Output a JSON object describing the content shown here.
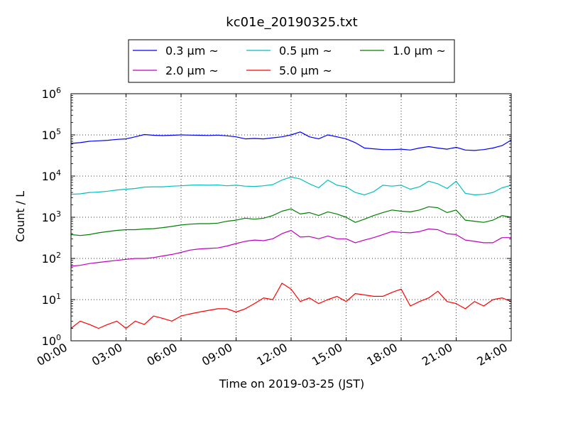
{
  "chart_data": {
    "type": "line",
    "title": "kc01e_20190325.txt",
    "xlabel": "Time on 2019-03-25 (JST)",
    "ylabel": "Count / L",
    "y_scale": "log",
    "ylim": [
      1,
      1000000
    ],
    "xlim": [
      "2019-03-25 00:00",
      "2019-03-26 00:00"
    ],
    "grid": true,
    "legend_position": "top-center, above plot",
    "x_ticks": [
      "00:00",
      "03:00",
      "06:00",
      "09:00",
      "12:00",
      "15:00",
      "18:00",
      "21:00",
      "24:00"
    ],
    "y_ticks": [
      {
        "value": 1,
        "base": "10",
        "exp": "0"
      },
      {
        "value": 10,
        "base": "10",
        "exp": "1"
      },
      {
        "value": 100,
        "base": "10",
        "exp": "2"
      },
      {
        "value": 1000,
        "base": "10",
        "exp": "3"
      },
      {
        "value": 10000,
        "base": "10",
        "exp": "4"
      },
      {
        "value": 100000,
        "base": "10",
        "exp": "5"
      },
      {
        "value": 1000000,
        "base": "10",
        "exp": "6"
      }
    ],
    "x_hours": [
      0,
      0.5,
      1,
      1.5,
      2,
      2.5,
      3,
      3.5,
      4,
      4.5,
      5,
      5.5,
      6,
      6.5,
      7,
      7.5,
      8,
      8.5,
      9,
      9.5,
      10,
      10.5,
      11,
      11.5,
      12,
      12.5,
      13,
      13.5,
      14,
      14.5,
      15,
      15.5,
      16,
      16.5,
      17,
      17.5,
      18,
      18.5,
      19,
      19.5,
      20,
      20.5,
      21,
      21.5,
      22,
      22.5,
      23,
      23.5,
      24
    ],
    "series": [
      {
        "name": "0.3 µm ~",
        "color": "#0000ff",
        "values": [
          62000,
          65000,
          70000,
          72000,
          74000,
          78000,
          80000,
          90000,
          102000,
          98000,
          96000,
          98000,
          100000,
          99000,
          98000,
          97000,
          99000,
          95000,
          90000,
          80000,
          82000,
          80000,
          85000,
          90000,
          100000,
          118000,
          90000,
          80000,
          100000,
          90000,
          80000,
          65000,
          48000,
          46000,
          44000,
          44000,
          45000,
          43000,
          48000,
          52000,
          48000,
          45000,
          50000,
          43000,
          42000,
          44000,
          48000,
          55000,
          75000
        ]
      },
      {
        "name": "0.5 µm ~",
        "color": "#00bfbf",
        "values": [
          3600,
          3700,
          4000,
          4100,
          4300,
          4600,
          4800,
          5000,
          5400,
          5500,
          5500,
          5700,
          5800,
          6000,
          6100,
          6000,
          6100,
          5800,
          6000,
          5700,
          5600,
          5800,
          6200,
          8000,
          9500,
          8500,
          6500,
          5200,
          8000,
          6000,
          5500,
          4000,
          3500,
          4200,
          6000,
          5700,
          6000,
          4800,
          5500,
          7500,
          6500,
          5000,
          7500,
          3800,
          3500,
          3600,
          4000,
          5200,
          6000
        ]
      },
      {
        "name": "1.0 µm ~",
        "color": "#008000",
        "values": [
          380,
          360,
          380,
          420,
          450,
          480,
          500,
          500,
          520,
          530,
          560,
          600,
          650,
          680,
          700,
          700,
          720,
          800,
          850,
          950,
          900,
          950,
          1100,
          1400,
          1600,
          1200,
          1300,
          1100,
          1350,
          1200,
          1000,
          750,
          900,
          1100,
          1300,
          1500,
          1400,
          1350,
          1500,
          1800,
          1700,
          1300,
          1500,
          850,
          800,
          750,
          850,
          1100,
          1000
        ]
      },
      {
        "name": "2.0 µm ~",
        "color": "#bf00bf",
        "values": [
          65,
          68,
          75,
          80,
          85,
          90,
          95,
          100,
          100,
          105,
          115,
          125,
          140,
          160,
          170,
          175,
          180,
          200,
          230,
          260,
          280,
          270,
          300,
          400,
          480,
          330,
          340,
          300,
          350,
          300,
          300,
          240,
          280,
          320,
          380,
          450,
          430,
          420,
          450,
          520,
          500,
          400,
          380,
          280,
          260,
          240,
          240,
          320,
          320
        ]
      },
      {
        "name": "5.0 µm ~",
        "color": "#ff0000",
        "values": [
          2,
          3,
          2.5,
          2,
          2.5,
          3,
          2,
          3,
          2.5,
          4,
          3.5,
          3,
          4,
          4.5,
          5,
          5.5,
          6,
          6,
          5,
          6,
          8,
          11,
          10,
          25,
          18,
          9,
          11,
          8,
          10,
          12,
          9,
          14,
          13,
          12,
          12,
          15,
          18,
          7,
          9,
          11,
          16,
          9,
          8,
          6,
          9,
          7,
          10,
          11,
          9
        ]
      }
    ]
  }
}
